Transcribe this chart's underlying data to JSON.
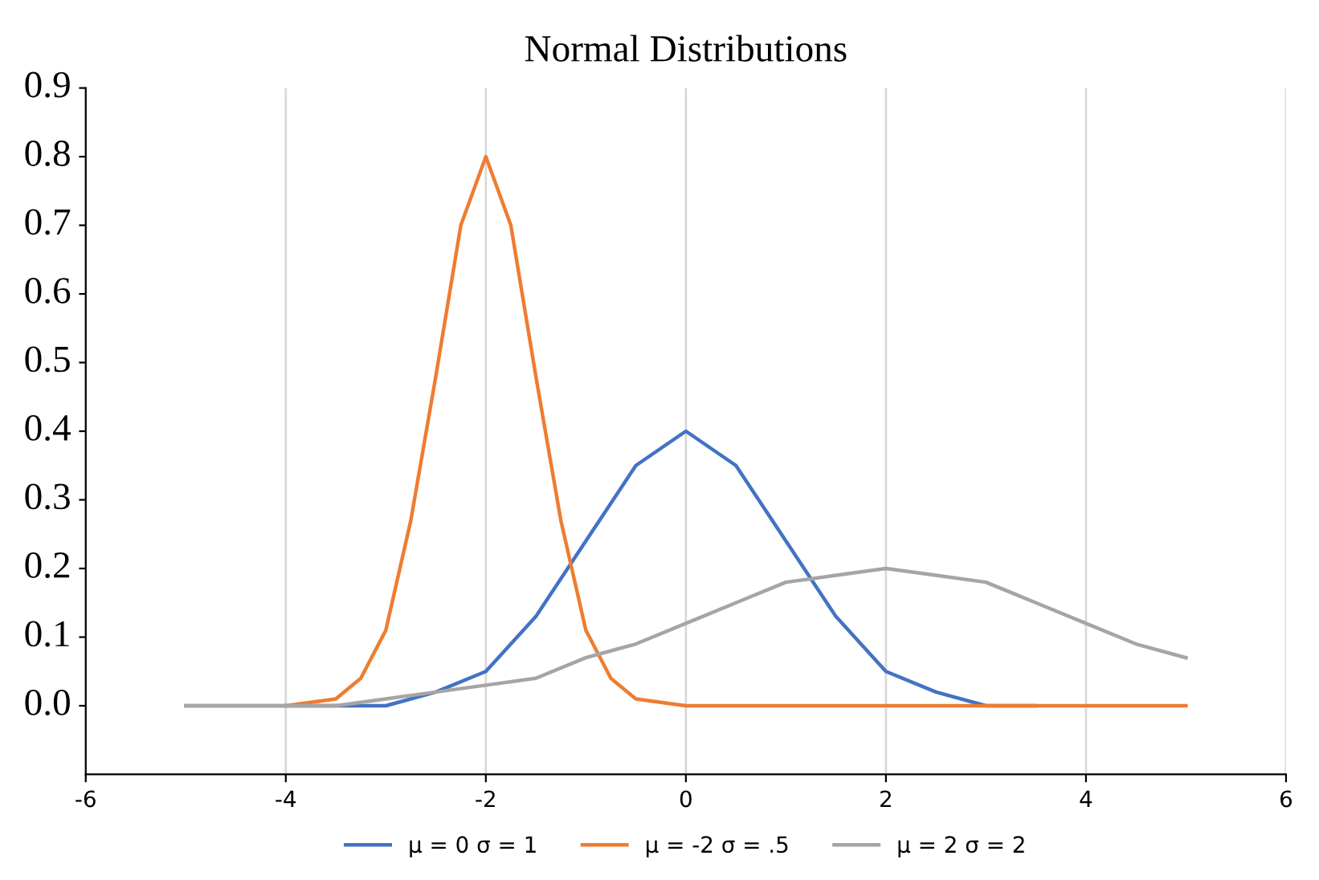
{
  "chart_data": {
    "type": "line",
    "title": "Normal Distributions",
    "x": [
      -5,
      -4.5,
      -4,
      -3.5,
      -3,
      -2.5,
      -2,
      -1.5,
      -1,
      -0.5,
      0,
      0.5,
      1,
      1.5,
      2,
      2.5,
      3,
      3.5,
      4,
      4.5,
      5
    ],
    "series": [
      {
        "name": "μ = 0 σ = 1",
        "color": "#4472c4",
        "values": [
          null,
          null,
          0,
          0,
          0,
          0.02,
          0.05,
          0.13,
          0.24,
          0.35,
          0.4,
          0.35,
          0.24,
          0.13,
          0.05,
          0.02,
          0,
          0,
          null,
          null,
          null
        ]
      },
      {
        "name": "μ = -2 σ = .5",
        "color": "#ed7d31",
        "x": [
          -5,
          -4.5,
          -4,
          -3.5,
          -3.25,
          -3,
          -2.75,
          -2.5,
          -2.25,
          -2,
          -1.75,
          -1.5,
          -1.25,
          -1,
          -0.75,
          -0.5,
          0,
          0.5,
          1,
          1.5,
          2,
          2.5,
          3,
          3.5,
          4,
          4.5,
          5
        ],
        "values": [
          0,
          0,
          0,
          0.01,
          0.04,
          0.11,
          0.27,
          0.48,
          0.7,
          0.8,
          0.7,
          0.48,
          0.27,
          0.11,
          0.04,
          0.01,
          0,
          0,
          0,
          0,
          0,
          0,
          0,
          0,
          0,
          0,
          0
        ]
      },
      {
        "name": "μ = 2 σ = 2",
        "color": "#a5a5a5",
        "values": [
          0,
          0,
          0,
          0,
          0.01,
          0.02,
          0.03,
          0.04,
          0.07,
          0.09,
          0.12,
          0.15,
          0.18,
          0.19,
          0.2,
          0.19,
          0.18,
          0.15,
          0.12,
          0.09,
          0.07
        ]
      }
    ],
    "xlim": [
      -6,
      6
    ],
    "xticks": [
      -6,
      -4,
      -2,
      0,
      2,
      4,
      6
    ],
    "ylim": [
      -0.1,
      0.9
    ],
    "yticks": [
      {
        "value": 0,
        "label": "0.0"
      },
      0.1,
      0.2,
      0.3,
      0.4,
      0.5,
      0.6,
      0.7,
      0.8,
      0.9
    ],
    "grid": "x",
    "legend": "bottom",
    "line_style": "solid",
    "marker": "none"
  }
}
